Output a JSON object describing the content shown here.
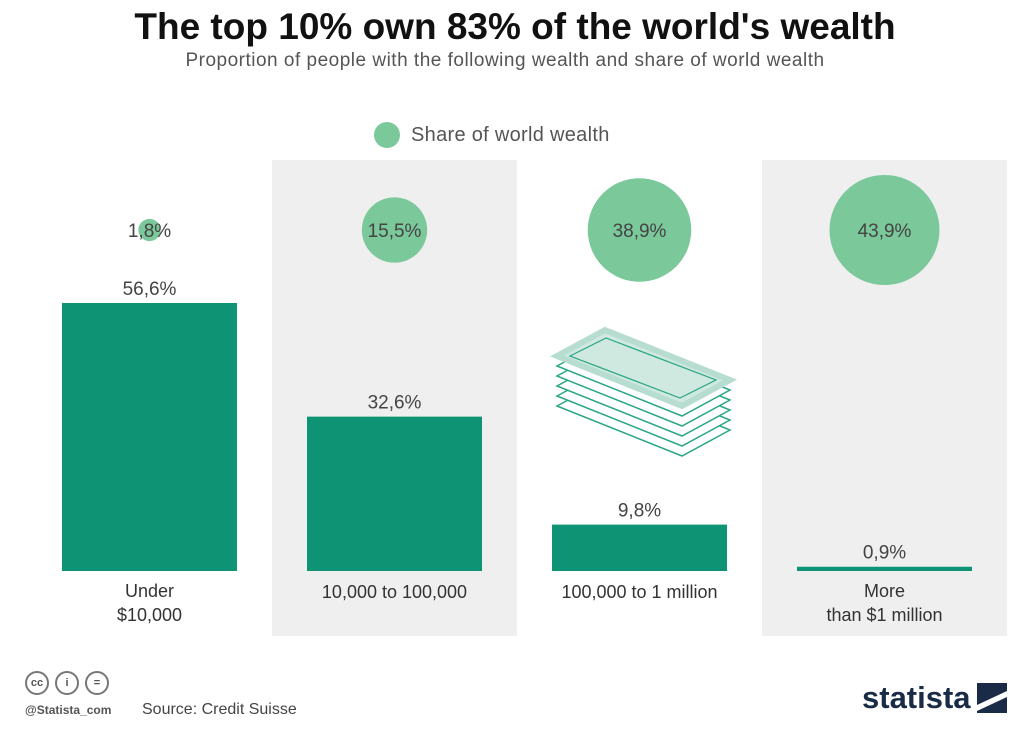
{
  "header": {
    "title": "The top 10% own 83% of the world's wealth",
    "subtitle": "Proportion of people with the following wealth and share of world wealth"
  },
  "legend": {
    "label": "Share of world wealth",
    "color": "#7bc89b"
  },
  "chart_data": {
    "type": "bar",
    "categories": [
      "Under $10,000",
      "10,000 to 100,000",
      "100,000 to 1 million",
      "More than $1 million"
    ],
    "category_lines": [
      [
        "Under",
        "$10,000"
      ],
      [
        "10,000 to 100,000"
      ],
      [
        "100,000 to 1 million"
      ],
      [
        "More",
        "than $1 million"
      ]
    ],
    "series": [
      {
        "name": "",
        "values": [
          56.6,
          32.6,
          9.8,
          0.9
        ],
        "labels": [
          "56,6%",
          "32,6%",
          "9,8%",
          "0,9%"
        ],
        "color": "#0e9474"
      },
      {
        "name": "Share of world wealth",
        "values": [
          1.8,
          15.5,
          38.9,
          43.9
        ],
        "labels": [
          "1,8%",
          "15,5%",
          "38,9%",
          "43,9%"
        ],
        "color": "#7bc89b"
      }
    ],
    "band_color": "#efefef",
    "shaded_columns": [
      1,
      3
    ],
    "money_icon": "money-stack-icon"
  },
  "footer": {
    "source": "Source: Credit Suisse",
    "handle": "@Statista_com",
    "brand": "statista",
    "license_icons": [
      "cc-icon",
      "by-icon",
      "nd-icon"
    ],
    "license_glyphs": [
      "cc",
      "i",
      "="
    ]
  }
}
